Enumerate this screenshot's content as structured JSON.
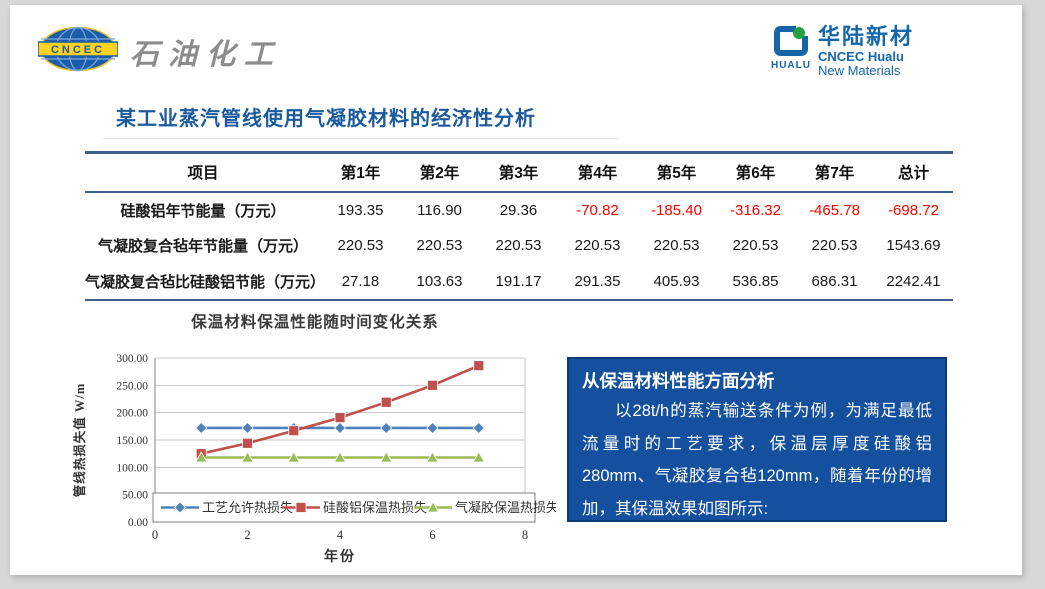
{
  "header": {
    "left_logo": {
      "badge": "CNCEC",
      "brand": "石油化工"
    },
    "right_logo": {
      "icon_text": "HUALU",
      "brand_cn": "华陆新材",
      "brand_en1": "CNCEC Hualu",
      "brand_en2": "New Materials"
    }
  },
  "title": "某工业蒸汽管线使用气凝胶材料的经济性分析",
  "table": {
    "columns": [
      "项目",
      "第1年",
      "第2年",
      "第3年",
      "第4年",
      "第5年",
      "第6年",
      "第7年",
      "总计"
    ],
    "rows": [
      {
        "label": "硅酸铝年节能量（万元）",
        "values": [
          "193.35",
          "116.90",
          "29.36",
          "-70.82",
          "-185.40",
          "-316.32",
          "-465.78",
          "-698.72"
        ]
      },
      {
        "label": "气凝胶复合毡年节能量（万元）",
        "values": [
          "220.53",
          "220.53",
          "220.53",
          "220.53",
          "220.53",
          "220.53",
          "220.53",
          "1543.69"
        ]
      },
      {
        "label": "气凝胶复合毡比硅酸铝节能（万元）",
        "values": [
          "27.18",
          "103.63",
          "191.17",
          "291.35",
          "405.93",
          "536.85",
          "686.31",
          "2242.41"
        ]
      }
    ],
    "negative_color": "#FF0000"
  },
  "chart_data": {
    "type": "line",
    "title": "保温材料保温性能随时间变化关系",
    "xlabel": "年份",
    "ylabel": "管线热损失值 W/m",
    "x": [
      1,
      2,
      3,
      4,
      5,
      6,
      7
    ],
    "xlim": [
      0,
      8
    ],
    "ylim": [
      0,
      300
    ],
    "xticks": [
      0,
      2,
      4,
      6,
      8
    ],
    "ytick_step": 50,
    "grid": true,
    "legend_position": "bottom-inside",
    "series": [
      {
        "name": "工艺允许热损失",
        "color": "#4F81BD",
        "marker": "diamond",
        "values": [
          172,
          172,
          172,
          172,
          172,
          172,
          172
        ]
      },
      {
        "name": "硅酸铝保温热损失",
        "color": "#C0504D",
        "marker": "square",
        "values": [
          125,
          144,
          167,
          191,
          219,
          250,
          286
        ]
      },
      {
        "name": "气凝胶保温热损失",
        "color": "#9BBB59",
        "marker": "triangle",
        "values": [
          118,
          118,
          118,
          118,
          118,
          118,
          118
        ]
      }
    ]
  },
  "analysis_box": {
    "title": "从保温材料性能方面分析",
    "body": "以28t/h的蒸汽输送条件为例，为满足最低流量时的工艺要求，保温层厚度硅酸铝280mm、气凝胶复合毡120mm，随着年份的增加，其保温效果如图所示:",
    "background": "#14509D"
  },
  "colors": {
    "title_blue": "#1A5A9E",
    "table_border": "#3F5E8C",
    "negative": "#FF0000",
    "box_background": "#14509D",
    "box_border": "#0A3C7C",
    "brand_gray": "#8C8C8C",
    "hualu_blue": "#1467AB"
  }
}
